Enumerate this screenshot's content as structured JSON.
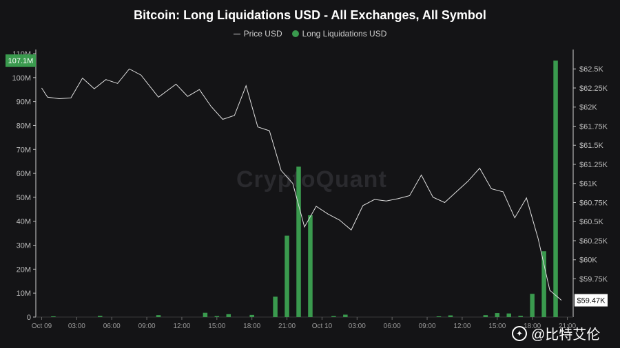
{
  "chart_data": {
    "type": "bar+line",
    "title": "Bitcoin: Long Liquidations USD - All Exchanges, All Symbol",
    "legend": [
      {
        "name": "Price USD",
        "color": "#d9d9d9",
        "kind": "line"
      },
      {
        "name": "Long Liquidations USD",
        "color": "#3a9a4e",
        "kind": "bar"
      }
    ],
    "x_tick_labels": [
      "Oct 09",
      "03:00",
      "06:00",
      "09:00",
      "12:00",
      "15:00",
      "18:00",
      "21:00",
      "Oct 10",
      "03:00",
      "06:00",
      "09:00",
      "12:00",
      "15:00",
      "18:00",
      "21:00"
    ],
    "x_hours": [
      0,
      3,
      6,
      9,
      12,
      15,
      18,
      21,
      24,
      27,
      30,
      33,
      36,
      39,
      42,
      45
    ],
    "x_range_hours": [
      -0.5,
      45.5
    ],
    "left_axis": {
      "ylim": [
        0,
        110
      ],
      "unit": "M",
      "ticks": [
        "0",
        "10M",
        "20M",
        "30M",
        "40M",
        "50M",
        "60M",
        "70M",
        "80M",
        "90M",
        "100M",
        "110M"
      ],
      "tick_values": [
        0,
        10,
        20,
        30,
        40,
        50,
        60,
        70,
        80,
        90,
        100,
        110
      ]
    },
    "right_axis": {
      "ylim": [
        59250,
        62700
      ],
      "ticks": [
        "$59.75K",
        "$60K",
        "$60.25K",
        "$60.5K",
        "$60.75K",
        "$61K",
        "$61.25K",
        "$61.5K",
        "$61.75K",
        "$62K",
        "$62.25K",
        "$62.5K"
      ],
      "tick_values": [
        59750,
        60000,
        60250,
        60500,
        60750,
        61000,
        61250,
        61500,
        61750,
        62000,
        62250,
        62500
      ]
    },
    "series": [
      {
        "name": "Long Liquidations USD",
        "unit": "M",
        "x_hours": [
          1,
          5,
          10,
          14,
          15,
          16,
          18,
          20,
          21,
          22,
          23,
          25,
          26,
          34,
          35,
          38,
          39,
          40,
          41,
          42,
          43,
          44
        ],
        "values": [
          0.3,
          0.5,
          0.8,
          1.8,
          0.4,
          1.2,
          0.9,
          8.5,
          34,
          62.8,
          42.5,
          0.4,
          1.0,
          0.3,
          0.7,
          0.8,
          1.7,
          1.5,
          0.5,
          9.7,
          27.5,
          107.1
        ]
      },
      {
        "name": "Price USD",
        "x_hours": [
          0,
          0.5,
          1.5,
          2.5,
          3.5,
          4.5,
          5.5,
          6.5,
          7.5,
          8.5,
          10,
          11.5,
          12.5,
          13.5,
          14.5,
          15.5,
          16.5,
          17.5,
          18.5,
          19.5,
          20.5,
          21.5,
          22.5,
          23.5,
          24.5,
          25.5,
          26.5,
          27.5,
          28.5,
          29.5,
          30.5,
          31.5,
          32.5,
          33.5,
          34.5,
          35.5,
          36.5,
          37.5,
          38.5,
          39.5,
          40.5,
          41.5,
          42.5,
          43.5,
          44.5
        ],
        "values": [
          62250,
          62130,
          62110,
          62120,
          62380,
          62240,
          62360,
          62310,
          62500,
          62420,
          62130,
          62300,
          62140,
          62230,
          62010,
          61840,
          61890,
          62280,
          61740,
          61690,
          61170,
          61000,
          60430,
          60700,
          60600,
          60520,
          60390,
          60710,
          60790,
          60770,
          60800,
          60840,
          61110,
          60820,
          60750,
          60890,
          61030,
          61200,
          60930,
          60890,
          60550,
          60810,
          60280,
          59600,
          59470
        ]
      }
    ],
    "labels": {
      "left_current": "107.1M",
      "right_current": "$59.47K"
    },
    "grid": false
  },
  "watermark": {
    "background_text": "CryptoQuant",
    "overlay_text": "@比特艾伦",
    "overlay_icon": "b-logo-icon"
  }
}
